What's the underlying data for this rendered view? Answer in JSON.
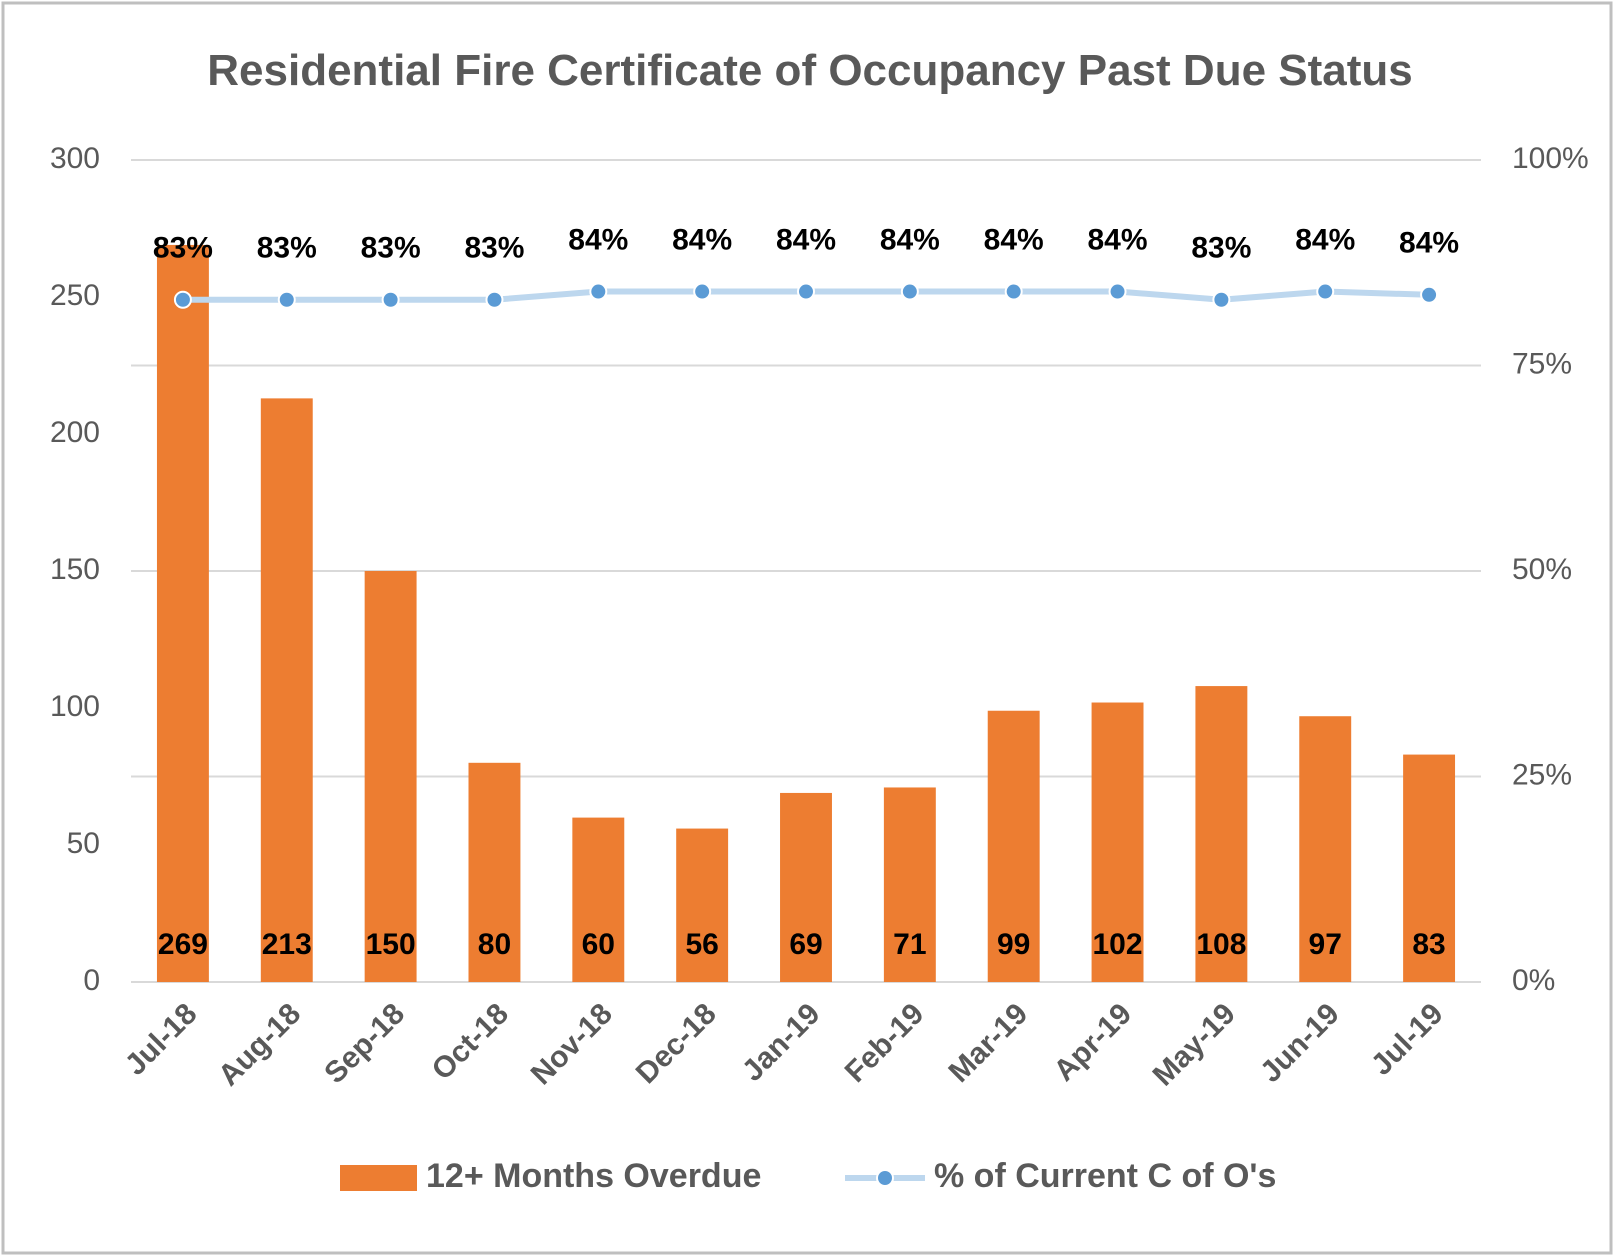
{
  "chart_data": {
    "type": "bar_line",
    "title": "Residential Fire Certificate of Occupancy Past Due Status",
    "categories": [
      "Jul-18",
      "Aug-18",
      "Sep-18",
      "Oct-18",
      "Nov-18",
      "Dec-18",
      "Jan-19",
      "Feb-19",
      "Mar-19",
      "Apr-19",
      "May-19",
      "Jun-19",
      "Jul-19"
    ],
    "series": [
      {
        "name": "12+ Months Overdue",
        "color": "#ed7d31",
        "type": "bar",
        "values": [
          269,
          213,
          150,
          80,
          60,
          56,
          69,
          71,
          99,
          102,
          108,
          97,
          83
        ]
      },
      {
        "name": "% of Current C of O's",
        "color": "#5b9bd5",
        "line_color": "#bdd7ee",
        "type": "line",
        "axis": "y2",
        "values": [
          83,
          83,
          83,
          83,
          84,
          84,
          84,
          84,
          84,
          84,
          83,
          84,
          83.6
        ],
        "value_labels": [
          "83%",
          "83%",
          "83%",
          "83%",
          "84%",
          "84%",
          "84%",
          "84%",
          "84%",
          "84%",
          "83%",
          "84%",
          "84%"
        ]
      }
    ],
    "ylim": [
      0,
      300
    ],
    "yticks": [
      0,
      50,
      100,
      150,
      200,
      250,
      300
    ],
    "y2lim": [
      0,
      100
    ],
    "y2ticks": [
      {
        "value": 0,
        "label": "0%"
      },
      {
        "value": 25,
        "label": "25%"
      },
      {
        "value": 50,
        "label": "50%"
      },
      {
        "value": 75,
        "label": "75%"
      },
      {
        "value": 100,
        "label": "100%"
      }
    ],
    "grid": true,
    "legend": "bottom"
  }
}
